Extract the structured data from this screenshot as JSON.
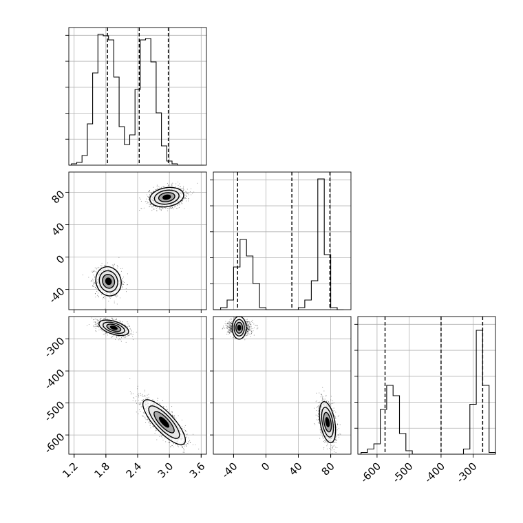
{
  "chart_data": {
    "type": "corner",
    "parameters": [
      {
        "range": [
          1.1,
          3.7
        ],
        "ticks": [
          "1.2",
          "1.8",
          "2.4",
          "3.0",
          "3.6"
        ],
        "ticks_visible": true,
        "histogram": {
          "edges": [
            1.15,
            1.25,
            1.35,
            1.45,
            1.55,
            1.65,
            1.75,
            1.85,
            1.95,
            2.05,
            2.15,
            2.25,
            2.35,
            2.45,
            2.55,
            2.65,
            2.75,
            2.85,
            2.95,
            3.05,
            3.15,
            3.25,
            3.35,
            3.45,
            3.55,
            3.65
          ],
          "counts": [
            0.01,
            0.02,
            0.07,
            0.3,
            0.67,
            0.95,
            0.94,
            0.91,
            0.64,
            0.28,
            0.15,
            0.22,
            0.55,
            0.91,
            0.92,
            0.75,
            0.38,
            0.14,
            0.03,
            0.01,
            0,
            0,
            0,
            0,
            0
          ],
          "ymax": 1.0
        },
        "quantiles": [
          1.83,
          2.43,
          2.98
        ]
      },
      {
        "range": [
          -65,
          105
        ],
        "ticks": [
          "-40",
          "0",
          "40",
          "80"
        ],
        "ticks_visible": true,
        "histogram": {
          "edges": [
            -56,
            -48,
            -40,
            -32,
            -24,
            -16,
            -8,
            0,
            8,
            16,
            24,
            32,
            40,
            48,
            56,
            64,
            72,
            80,
            88,
            96
          ],
          "counts": [
            0.03,
            0.14,
            0.62,
            1.02,
            0.78,
            0.38,
            0.03,
            0,
            0,
            0,
            0,
            0,
            0.03,
            0.14,
            0.42,
            1.9,
            0.8,
            0.03,
            0
          ],
          "ymax": 2.0
        },
        "quantiles": [
          -35,
          32,
          79
        ]
      },
      {
        "range": [
          -660,
          -230
        ],
        "ticks": [
          "-600",
          "-500",
          "-400",
          "-300"
        ],
        "ticks_visible": true,
        "histogram": {
          "edges": [
            -650,
            -630,
            -610,
            -590,
            -570,
            -550,
            -530,
            -510,
            -490,
            -470,
            -450,
            -430,
            -410,
            -390,
            -370,
            -350,
            -330,
            -310,
            -290,
            -270,
            -250,
            -230
          ],
          "counts": [
            0.01,
            0.03,
            0.06,
            0.26,
            0.4,
            0.34,
            0.12,
            0.02,
            0,
            0,
            0,
            0,
            0,
            0,
            0,
            0,
            0.03,
            0.29,
            0.72,
            0.4,
            0.01
          ],
          "ymax": 0.8
        },
        "quantiles": [
          -575,
          -400,
          -270
        ]
      }
    ],
    "pairs": [
      {
        "row": 1,
        "col": 0,
        "modes": [
          {
            "mean": [
              1.85,
              -30
            ],
            "sd": [
              0.12,
              9
            ],
            "rho": -0.1,
            "n": 1200
          },
          {
            "mean": [
              2.95,
              74
            ],
            "sd": [
              0.16,
              6
            ],
            "rho": 0.2,
            "n": 1400
          }
        ]
      },
      {
        "row": 2,
        "col": 0,
        "modes": [
          {
            "mean": [
              1.95,
              -265
            ],
            "sd": [
              0.14,
              12
            ],
            "rho": -0.5,
            "n": 1200
          },
          {
            "mean": [
              2.9,
              -560
            ],
            "sd": [
              0.2,
              35
            ],
            "rho": -0.8,
            "n": 1400
          }
        ]
      },
      {
        "row": 2,
        "col": 1,
        "modes": [
          {
            "mean": [
              -33,
              -265
            ],
            "sd": [
              7,
              11
            ],
            "rho": 0,
            "n": 1200
          },
          {
            "mean": [
              76,
              -560
            ],
            "sd": [
              5,
              32
            ],
            "rho": -0.4,
            "n": 1400
          }
        ]
      }
    ],
    "grid": true,
    "legend": "none"
  }
}
